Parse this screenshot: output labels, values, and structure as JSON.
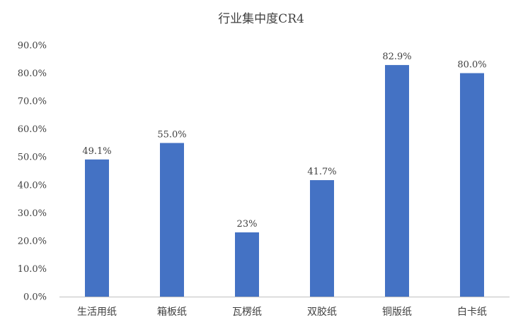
{
  "chart_data": {
    "type": "bar",
    "title": "行业集中度CR4",
    "xlabel": "",
    "ylabel": "",
    "categories": [
      "生活用纸",
      "箱板纸",
      "瓦楞纸",
      "双胶纸",
      "铜版纸",
      "白卡纸"
    ],
    "values": [
      49.1,
      55.0,
      23,
      41.7,
      82.9,
      80.0
    ],
    "data_labels": [
      "49.1%",
      "55.0%",
      "23%",
      "41.7%",
      "82.9%",
      "80.0%"
    ],
    "ylim": [
      0,
      90
    ],
    "y_ticks": [
      0,
      10,
      20,
      30,
      40,
      50,
      60,
      70,
      80,
      90
    ],
    "y_tick_labels": [
      "0.0%",
      "10.0%",
      "20.0%",
      "30.0%",
      "40.0%",
      "50.0%",
      "60.0%",
      "70.0%",
      "80.0%",
      "90.0%"
    ],
    "grid": false,
    "legend": "none",
    "bar_color": "#4472c4"
  }
}
